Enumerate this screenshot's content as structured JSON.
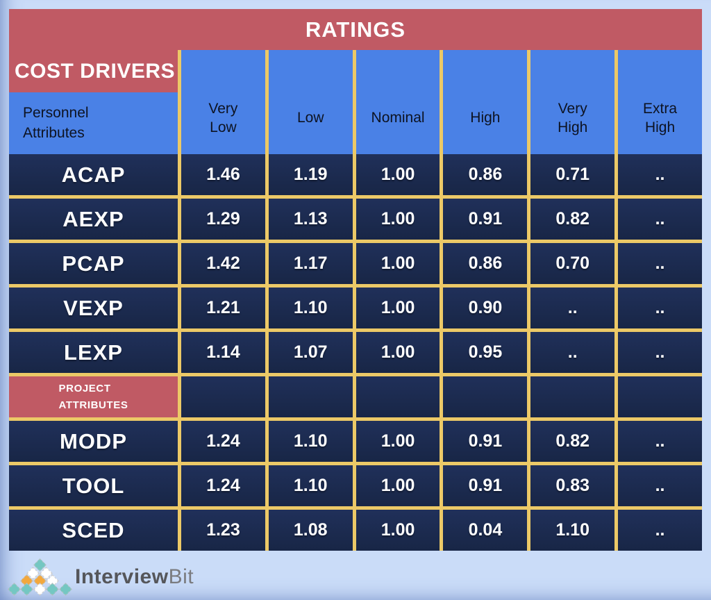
{
  "chart_data": {
    "type": "table",
    "title": "RATINGS",
    "corner_title": "COST DRIVERS",
    "row_group_header": "Personnel\nAttributes",
    "columns": [
      "Very\nLow",
      "Low",
      "Nominal",
      "High",
      "Very\nHigh",
      "Extra\nHigh"
    ],
    "rows": [
      {
        "label": "ACAP",
        "section": false,
        "values": [
          "1.46",
          "1.19",
          "1.00",
          "0.86",
          "0.71",
          ".."
        ]
      },
      {
        "label": "AEXP",
        "section": false,
        "values": [
          "1.29",
          "1.13",
          "1.00",
          "0.91",
          "0.82",
          ".."
        ]
      },
      {
        "label": "PCAP",
        "section": false,
        "values": [
          "1.42",
          "1.17",
          "1.00",
          "0.86",
          "0.70",
          ".."
        ]
      },
      {
        "label": "VEXP",
        "section": false,
        "values": [
          "1.21",
          "1.10",
          "1.00",
          "0.90",
          "..",
          ".."
        ]
      },
      {
        "label": "LEXP",
        "section": false,
        "values": [
          "1.14",
          "1.07",
          "1.00",
          "0.95",
          "..",
          ".."
        ]
      },
      {
        "label": "PROJECT\nATTRIBUTES",
        "section": true,
        "values": [
          "",
          "",
          "",
          "",
          "",
          ""
        ]
      },
      {
        "label": "MODP",
        "section": false,
        "values": [
          "1.24",
          "1.10",
          "1.00",
          "0.91",
          "0.82",
          ".."
        ]
      },
      {
        "label": "TOOL",
        "section": false,
        "values": [
          "1.24",
          "1.10",
          "1.00",
          "0.91",
          "0.83",
          ".."
        ]
      },
      {
        "label": "SCED",
        "section": false,
        "values": [
          "1.23",
          "1.08",
          "1.00",
          "0.04",
          "1.10",
          ".."
        ]
      }
    ]
  },
  "colors": {
    "header_red": "#c05a64",
    "header_blue": "#4a81e6",
    "cell_navy": "#1b2a4e",
    "grid_yellow": "#ecc967",
    "page_background": "#cadcf8"
  },
  "logo": {
    "name_bold": "Interview",
    "name_light": "Bit",
    "mark_rows": [
      [
        "teal"
      ],
      [
        "white",
        "white"
      ],
      [
        "orange",
        "orange",
        "white"
      ],
      [
        "teal",
        "teal",
        "white",
        "teal",
        "teal"
      ]
    ],
    "mark_colors": {
      "teal": "#74c7c2",
      "orange": "#f3a83c",
      "white": "#ffffff"
    }
  }
}
